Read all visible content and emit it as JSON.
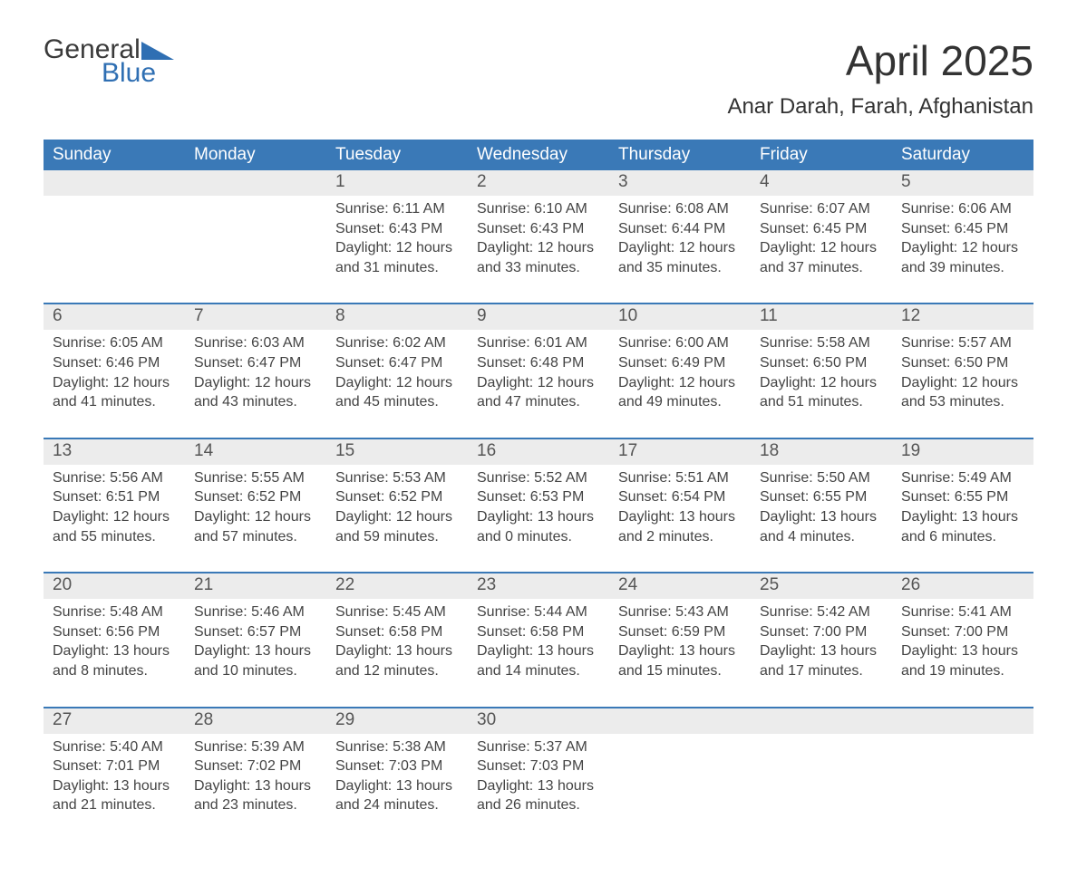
{
  "logo": {
    "word1": "General",
    "word2": "Blue"
  },
  "title": "April 2025",
  "location": "Anar Darah, Farah, Afghanistan",
  "colors": {
    "header_bg": "#3a79b7",
    "header_text": "#ffffff",
    "daynum_bg": "#ececec",
    "daynum_text": "#555555",
    "body_text": "#444444",
    "rule": "#3a79b7",
    "page_bg": "#ffffff",
    "logo_gray": "#3a3a3a",
    "logo_blue": "#2f6fb3"
  },
  "columns": [
    "Sunday",
    "Monday",
    "Tuesday",
    "Wednesday",
    "Thursday",
    "Friday",
    "Saturday"
  ],
  "weeks": [
    [
      null,
      null,
      {
        "n": "1",
        "sr": "6:11 AM",
        "ss": "6:43 PM",
        "dl": "12 hours and 31 minutes."
      },
      {
        "n": "2",
        "sr": "6:10 AM",
        "ss": "6:43 PM",
        "dl": "12 hours and 33 minutes."
      },
      {
        "n": "3",
        "sr": "6:08 AM",
        "ss": "6:44 PM",
        "dl": "12 hours and 35 minutes."
      },
      {
        "n": "4",
        "sr": "6:07 AM",
        "ss": "6:45 PM",
        "dl": "12 hours and 37 minutes."
      },
      {
        "n": "5",
        "sr": "6:06 AM",
        "ss": "6:45 PM",
        "dl": "12 hours and 39 minutes."
      }
    ],
    [
      {
        "n": "6",
        "sr": "6:05 AM",
        "ss": "6:46 PM",
        "dl": "12 hours and 41 minutes."
      },
      {
        "n": "7",
        "sr": "6:03 AM",
        "ss": "6:47 PM",
        "dl": "12 hours and 43 minutes."
      },
      {
        "n": "8",
        "sr": "6:02 AM",
        "ss": "6:47 PM",
        "dl": "12 hours and 45 minutes."
      },
      {
        "n": "9",
        "sr": "6:01 AM",
        "ss": "6:48 PM",
        "dl": "12 hours and 47 minutes."
      },
      {
        "n": "10",
        "sr": "6:00 AM",
        "ss": "6:49 PM",
        "dl": "12 hours and 49 minutes."
      },
      {
        "n": "11",
        "sr": "5:58 AM",
        "ss": "6:50 PM",
        "dl": "12 hours and 51 minutes."
      },
      {
        "n": "12",
        "sr": "5:57 AM",
        "ss": "6:50 PM",
        "dl": "12 hours and 53 minutes."
      }
    ],
    [
      {
        "n": "13",
        "sr": "5:56 AM",
        "ss": "6:51 PM",
        "dl": "12 hours and 55 minutes."
      },
      {
        "n": "14",
        "sr": "5:55 AM",
        "ss": "6:52 PM",
        "dl": "12 hours and 57 minutes."
      },
      {
        "n": "15",
        "sr": "5:53 AM",
        "ss": "6:52 PM",
        "dl": "12 hours and 59 minutes."
      },
      {
        "n": "16",
        "sr": "5:52 AM",
        "ss": "6:53 PM",
        "dl": "13 hours and 0 minutes."
      },
      {
        "n": "17",
        "sr": "5:51 AM",
        "ss": "6:54 PM",
        "dl": "13 hours and 2 minutes."
      },
      {
        "n": "18",
        "sr": "5:50 AM",
        "ss": "6:55 PM",
        "dl": "13 hours and 4 minutes."
      },
      {
        "n": "19",
        "sr": "5:49 AM",
        "ss": "6:55 PM",
        "dl": "13 hours and 6 minutes."
      }
    ],
    [
      {
        "n": "20",
        "sr": "5:48 AM",
        "ss": "6:56 PM",
        "dl": "13 hours and 8 minutes."
      },
      {
        "n": "21",
        "sr": "5:46 AM",
        "ss": "6:57 PM",
        "dl": "13 hours and 10 minutes."
      },
      {
        "n": "22",
        "sr": "5:45 AM",
        "ss": "6:58 PM",
        "dl": "13 hours and 12 minutes."
      },
      {
        "n": "23",
        "sr": "5:44 AM",
        "ss": "6:58 PM",
        "dl": "13 hours and 14 minutes."
      },
      {
        "n": "24",
        "sr": "5:43 AM",
        "ss": "6:59 PM",
        "dl": "13 hours and 15 minutes."
      },
      {
        "n": "25",
        "sr": "5:42 AM",
        "ss": "7:00 PM",
        "dl": "13 hours and 17 minutes."
      },
      {
        "n": "26",
        "sr": "5:41 AM",
        "ss": "7:00 PM",
        "dl": "13 hours and 19 minutes."
      }
    ],
    [
      {
        "n": "27",
        "sr": "5:40 AM",
        "ss": "7:01 PM",
        "dl": "13 hours and 21 minutes."
      },
      {
        "n": "28",
        "sr": "5:39 AM",
        "ss": "7:02 PM",
        "dl": "13 hours and 23 minutes."
      },
      {
        "n": "29",
        "sr": "5:38 AM",
        "ss": "7:03 PM",
        "dl": "13 hours and 24 minutes."
      },
      {
        "n": "30",
        "sr": "5:37 AM",
        "ss": "7:03 PM",
        "dl": "13 hours and 26 minutes."
      },
      null,
      null,
      null
    ]
  ],
  "labels": {
    "sunrise": "Sunrise: ",
    "sunset": "Sunset: ",
    "daylight": "Daylight: "
  }
}
